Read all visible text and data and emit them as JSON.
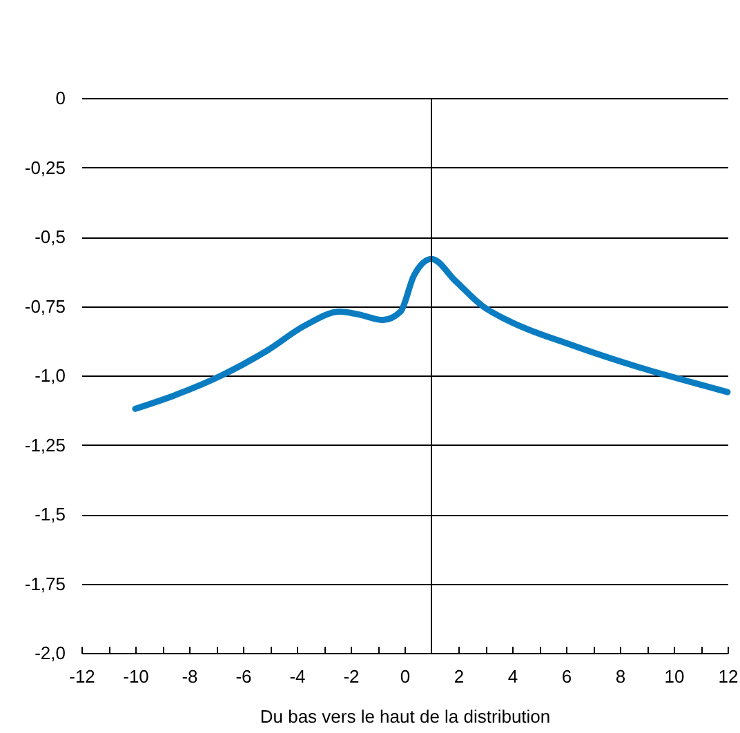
{
  "chart_data": {
    "type": "line",
    "xlabel": "Du bas vers le haut de la distribution",
    "x": [
      -10,
      -8.5,
      -6.8,
      -5.1,
      -3.7,
      -2.4,
      -1.7,
      -0.8,
      -0.15,
      0.35,
      1,
      1.9,
      2.9,
      3.8,
      6.2,
      8.7,
      10.5,
      12
    ],
    "series": [
      {
        "color": "#0a7dc2",
        "values": [
          -1.12,
          -1.07,
          -1.0,
          -0.91,
          -0.82,
          -0.77,
          -0.78,
          -0.8,
          -0.77,
          -0.64,
          -0.58,
          -0.66,
          -0.75,
          -0.8,
          -0.89,
          -0.97,
          -1.02,
          -1.06
        ]
      }
    ],
    "xlim": [
      -12,
      12
    ],
    "xticks": [
      -12,
      {
        "value": -11,
        "label": null
      },
      -10,
      {
        "value": -9,
        "label": null
      },
      -8,
      {
        "value": -7,
        "label": null
      },
      -6,
      {
        "value": -5,
        "label": null
      },
      -4,
      {
        "value": -3,
        "label": null
      },
      -2,
      {
        "value": -1,
        "label": null
      },
      0,
      {
        "value": 1,
        "label": null
      },
      2,
      {
        "value": 3,
        "label": null
      },
      4,
      {
        "value": 5,
        "label": null
      },
      6,
      {
        "value": 7,
        "label": null
      },
      8,
      {
        "value": 9,
        "label": null
      },
      10,
      {
        "value": 11,
        "label": null
      },
      12
    ],
    "ylim": [
      -2,
      0
    ],
    "yticks": [
      0,
      {
        "value": -0.25,
        "label": "-0,25"
      },
      {
        "value": -0.5,
        "label": "-0,5"
      },
      {
        "value": -0.75,
        "label": "-0,75"
      },
      {
        "value": -1,
        "label": "-1,0"
      },
      {
        "value": -1.25,
        "label": "-1,25"
      },
      {
        "value": -1.5,
        "label": "-1,5"
      },
      {
        "value": -1.75,
        "label": "-1,75"
      },
      {
        "value": -2,
        "label": "-2,0"
      }
    ],
    "grid": "y",
    "ref_lines": [
      {
        "axis": "x",
        "value": 1,
        "color": "#000000"
      }
    ],
    "line_style": "solid",
    "marker": "none",
    "legend": false
  }
}
